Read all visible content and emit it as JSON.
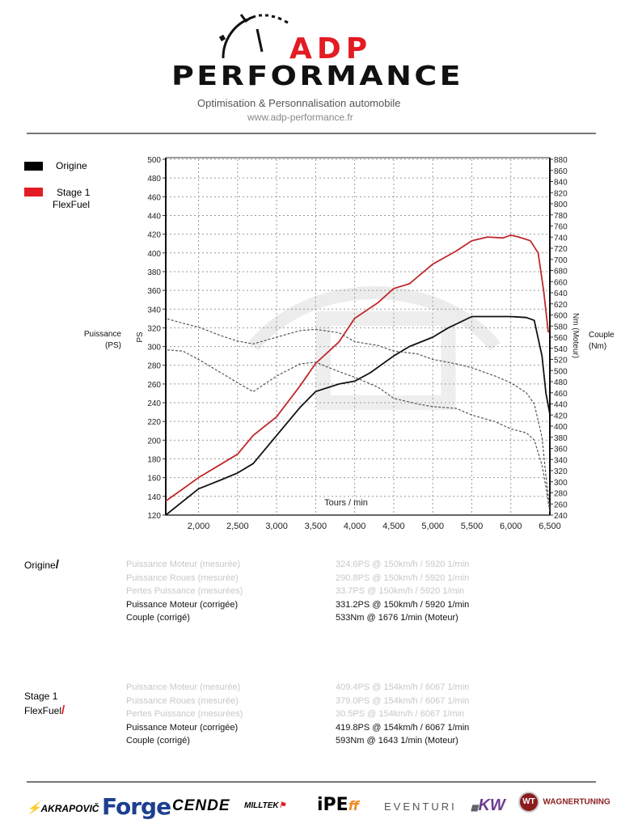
{
  "header": {
    "brand_top": "ADP",
    "brand_bottom": "PERFORMANCE",
    "tagline": "Optimisation & Personnalisation automobile",
    "url": "www.adp-performance.fr"
  },
  "legend": {
    "items": [
      {
        "label": "Origine",
        "color": "#000000"
      },
      {
        "label_line1": "Stage 1",
        "label_line2": "FlexFuel",
        "color": "#e31b23"
      }
    ]
  },
  "axes": {
    "left_title_line1": "Puissance",
    "left_title_line2": "(PS)",
    "left_unit": "PS",
    "right_title_line1": "Couple",
    "right_title_line2": "(Nm)",
    "right_unit": "Nm (Moteur)",
    "x_label": "Tours / min"
  },
  "chart_data": {
    "type": "line",
    "title": "",
    "xlabel": "Tours / min",
    "ylabel": "PS",
    "y2label": "Nm (Moteur)",
    "xlim": [
      1580,
      6500
    ],
    "ylim": [
      120,
      500
    ],
    "y2lim": [
      240,
      880
    ],
    "x_ticks": [
      "2,000",
      "2,500",
      "3,000",
      "3,500",
      "4,000",
      "4,500",
      "5,000",
      "5,500",
      "6,000",
      "6,500"
    ],
    "y_ticks": [
      120,
      140,
      160,
      180,
      200,
      220,
      240,
      260,
      280,
      300,
      320,
      340,
      360,
      380,
      400,
      420,
      440,
      460,
      480,
      500
    ],
    "y2_ticks": [
      240,
      260,
      280,
      300,
      320,
      340,
      360,
      380,
      400,
      420,
      440,
      460,
      480,
      500,
      520,
      540,
      560,
      580,
      600,
      620,
      640,
      660,
      680,
      700,
      720,
      740,
      760,
      780,
      800,
      820,
      840,
      860,
      880
    ],
    "grid": true,
    "legend_position": "left",
    "series": [
      {
        "name": "Origine - Puissance",
        "axis": "left",
        "color": "#111111",
        "style": "solid",
        "x": [
          1580,
          1700,
          2000,
          2300,
          2500,
          2700,
          3000,
          3300,
          3500,
          3800,
          4000,
          4200,
          4500,
          4700,
          5000,
          5200,
          5500,
          5700,
          6000,
          6200,
          6300,
          6400,
          6450,
          6500
        ],
        "values": [
          120,
          128,
          148,
          158,
          165,
          175,
          205,
          235,
          252,
          260,
          263,
          272,
          290,
          300,
          310,
          320,
          332,
          332,
          332,
          331,
          328,
          290,
          250,
          228
        ]
      },
      {
        "name": "Stage 1 FlexFuel - Puissance",
        "axis": "left",
        "color": "#c0282c",
        "style": "solid",
        "x": [
          1580,
          1800,
          2000,
          2300,
          2500,
          2700,
          3000,
          3300,
          3500,
          3800,
          4000,
          4300,
          4500,
          4700,
          5000,
          5300,
          5500,
          5700,
          5900,
          6000,
          6100,
          6250,
          6350,
          6420,
          6480
        ],
        "values": [
          135,
          148,
          160,
          175,
          185,
          205,
          225,
          258,
          282,
          305,
          330,
          347,
          362,
          367,
          388,
          402,
          413,
          417,
          416,
          419,
          417,
          413,
          400,
          360,
          315
        ]
      },
      {
        "name": "Origine - Couple",
        "axis": "right",
        "color": "#555555",
        "style": "dashed",
        "x": [
          1600,
          1800,
          2000,
          2300,
          2500,
          2700,
          3000,
          3300,
          3500,
          3800,
          4000,
          4300,
          4500,
          4800,
          5000,
          5300,
          5500,
          5800,
          6000,
          6200,
          6300,
          6400,
          6450,
          6500
        ],
        "values": [
          537,
          535,
          520,
          495,
          478,
          462,
          490,
          512,
          515,
          498,
          488,
          470,
          450,
          440,
          435,
          432,
          420,
          408,
          395,
          388,
          375,
          330,
          290,
          245
        ]
      },
      {
        "name": "Stage 1 FlexFuel - Couple",
        "axis": "right",
        "color": "#555555",
        "style": "dashed",
        "x": [
          1600,
          1800,
          2000,
          2300,
          2500,
          2700,
          3000,
          3300,
          3500,
          3800,
          4000,
          4300,
          4500,
          4800,
          5000,
          5300,
          5500,
          5800,
          6000,
          6200,
          6300,
          6400,
          6450,
          6500
        ],
        "values": [
          593,
          585,
          578,
          562,
          553,
          548,
          560,
          572,
          574,
          568,
          552,
          545,
          535,
          530,
          520,
          512,
          505,
          490,
          478,
          460,
          440,
          380,
          310,
          250
        ]
      }
    ]
  },
  "results": [
    {
      "label_line1": "Origine",
      "label_line2": "",
      "slash_color": "#111111",
      "rows": [
        {
          "name": "Puissance Moteur (mesurée)",
          "value": "324.6PS @ 150km/h / 5920 1/min",
          "dim": true
        },
        {
          "name": "Puissance Roues (mesurée)",
          "value": "290.8PS @ 150km/h / 5920 1/min",
          "dim": true
        },
        {
          "name": "Pertes Puissance (mesurées)",
          "value": "33.7PS @ 150km/h / 5920 1/min",
          "dim": true
        },
        {
          "name": "Puissance Moteur (corrigée)",
          "value": "331.2PS @ 150km/h / 5920 1/min",
          "dim": false
        },
        {
          "name": "Couple (corrigé)",
          "value": "533Nm @ 1676 1/min (Moteur)",
          "dim": false
        }
      ]
    },
    {
      "label_line1": "Stage 1",
      "label_line2": "FlexFuel",
      "slash_color": "#e31b23",
      "rows": [
        {
          "name": "Puissance Moteur (mesurée)",
          "value": "409.4PS @ 154km/h / 6067 1/min",
          "dim": true
        },
        {
          "name": "Puissance Roues (mesurée)",
          "value": "379.0PS @ 154km/h / 6067 1/min",
          "dim": true
        },
        {
          "name": "Pertes Puissance (mesurées)",
          "value": "30.5PS @ 154km/h / 6067 1/min",
          "dim": true
        },
        {
          "name": "Puissance Moteur (corrigée)",
          "value": "419.8PS @ 154km/h / 6067 1/min",
          "dim": false
        },
        {
          "name": "Couple (corrigé)",
          "value": "593Nm @ 1643 1/min (Moteur)",
          "dim": false
        }
      ]
    }
  ],
  "partners": [
    {
      "name": "AKRAPOVIČ",
      "color": "#222222"
    },
    {
      "name": "Forge",
      "color": "#1d3f8f"
    },
    {
      "name": "CENDE",
      "color": "#111111"
    },
    {
      "name": "MILLTEK",
      "color": "#222222"
    },
    {
      "name": "iPE",
      "color": "#111111"
    },
    {
      "name": "EVENTURI",
      "color": "#555555"
    },
    {
      "name": "KW",
      "color": "#6b3d8f"
    },
    {
      "name": "WAGNERTUNING",
      "color": "#8b1d1d"
    }
  ]
}
